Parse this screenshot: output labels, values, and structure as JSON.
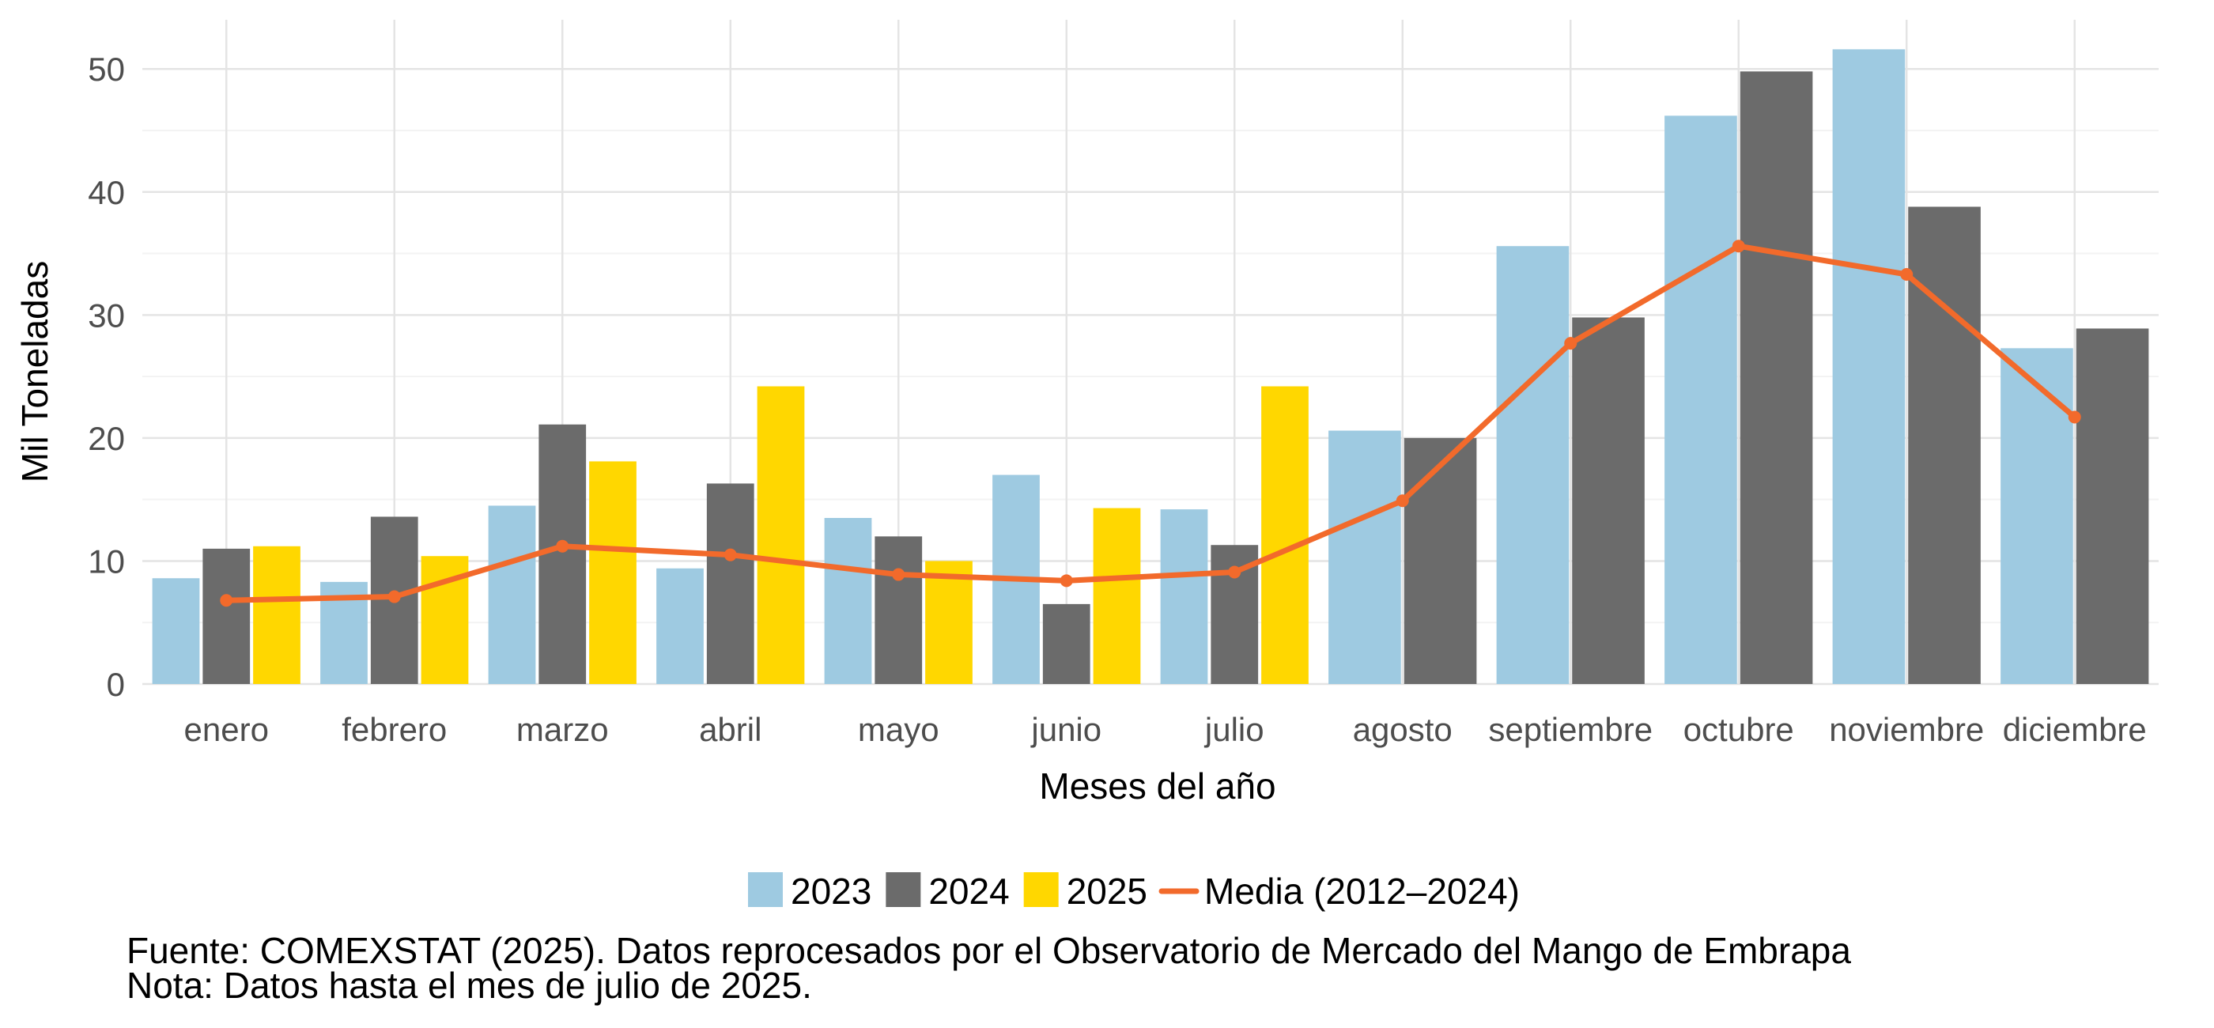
{
  "chart_data": {
    "type": "bar",
    "title": "",
    "xlabel": "Meses del año",
    "ylabel": "Mil Toneladas",
    "ylim": [
      0,
      54
    ],
    "yticks": [
      0,
      10,
      20,
      30,
      40,
      50
    ],
    "grid": true,
    "legend_position": "bottom",
    "categories": [
      "enero",
      "febrero",
      "marzo",
      "abril",
      "mayo",
      "junio",
      "julio",
      "agosto",
      "septiembre",
      "octubre",
      "noviembre",
      "diciembre"
    ],
    "series": [
      {
        "name": "2023",
        "kind": "bar",
        "color": "#9ecae1",
        "values": [
          8.6,
          8.3,
          14.5,
          9.4,
          13.5,
          17.0,
          14.2,
          20.6,
          35.6,
          46.2,
          51.6,
          27.3
        ]
      },
      {
        "name": "2024",
        "kind": "bar",
        "color": "#6b6b6b",
        "values": [
          11.0,
          13.6,
          21.1,
          16.3,
          12.0,
          6.5,
          11.3,
          20.0,
          29.8,
          49.8,
          38.8,
          28.9
        ]
      },
      {
        "name": "2025",
        "kind": "bar",
        "color": "#ffd700",
        "values": [
          11.2,
          10.4,
          18.1,
          24.2,
          10.0,
          14.3,
          24.2,
          null,
          null,
          null,
          null,
          null
        ]
      },
      {
        "name": "Media (2012–2024)",
        "kind": "line",
        "color": "#f26a2b",
        "values": [
          6.8,
          7.1,
          11.2,
          10.5,
          8.9,
          8.4,
          9.1,
          14.9,
          27.7,
          35.6,
          33.3,
          21.7
        ]
      }
    ],
    "caption_lines": [
      "Fuente: COMEXSTAT (2025). Datos reprocesados por el Observatorio de Mercado del Mango de Embrapa",
      "Nota: Datos hasta el mes de julio de 2025."
    ]
  }
}
